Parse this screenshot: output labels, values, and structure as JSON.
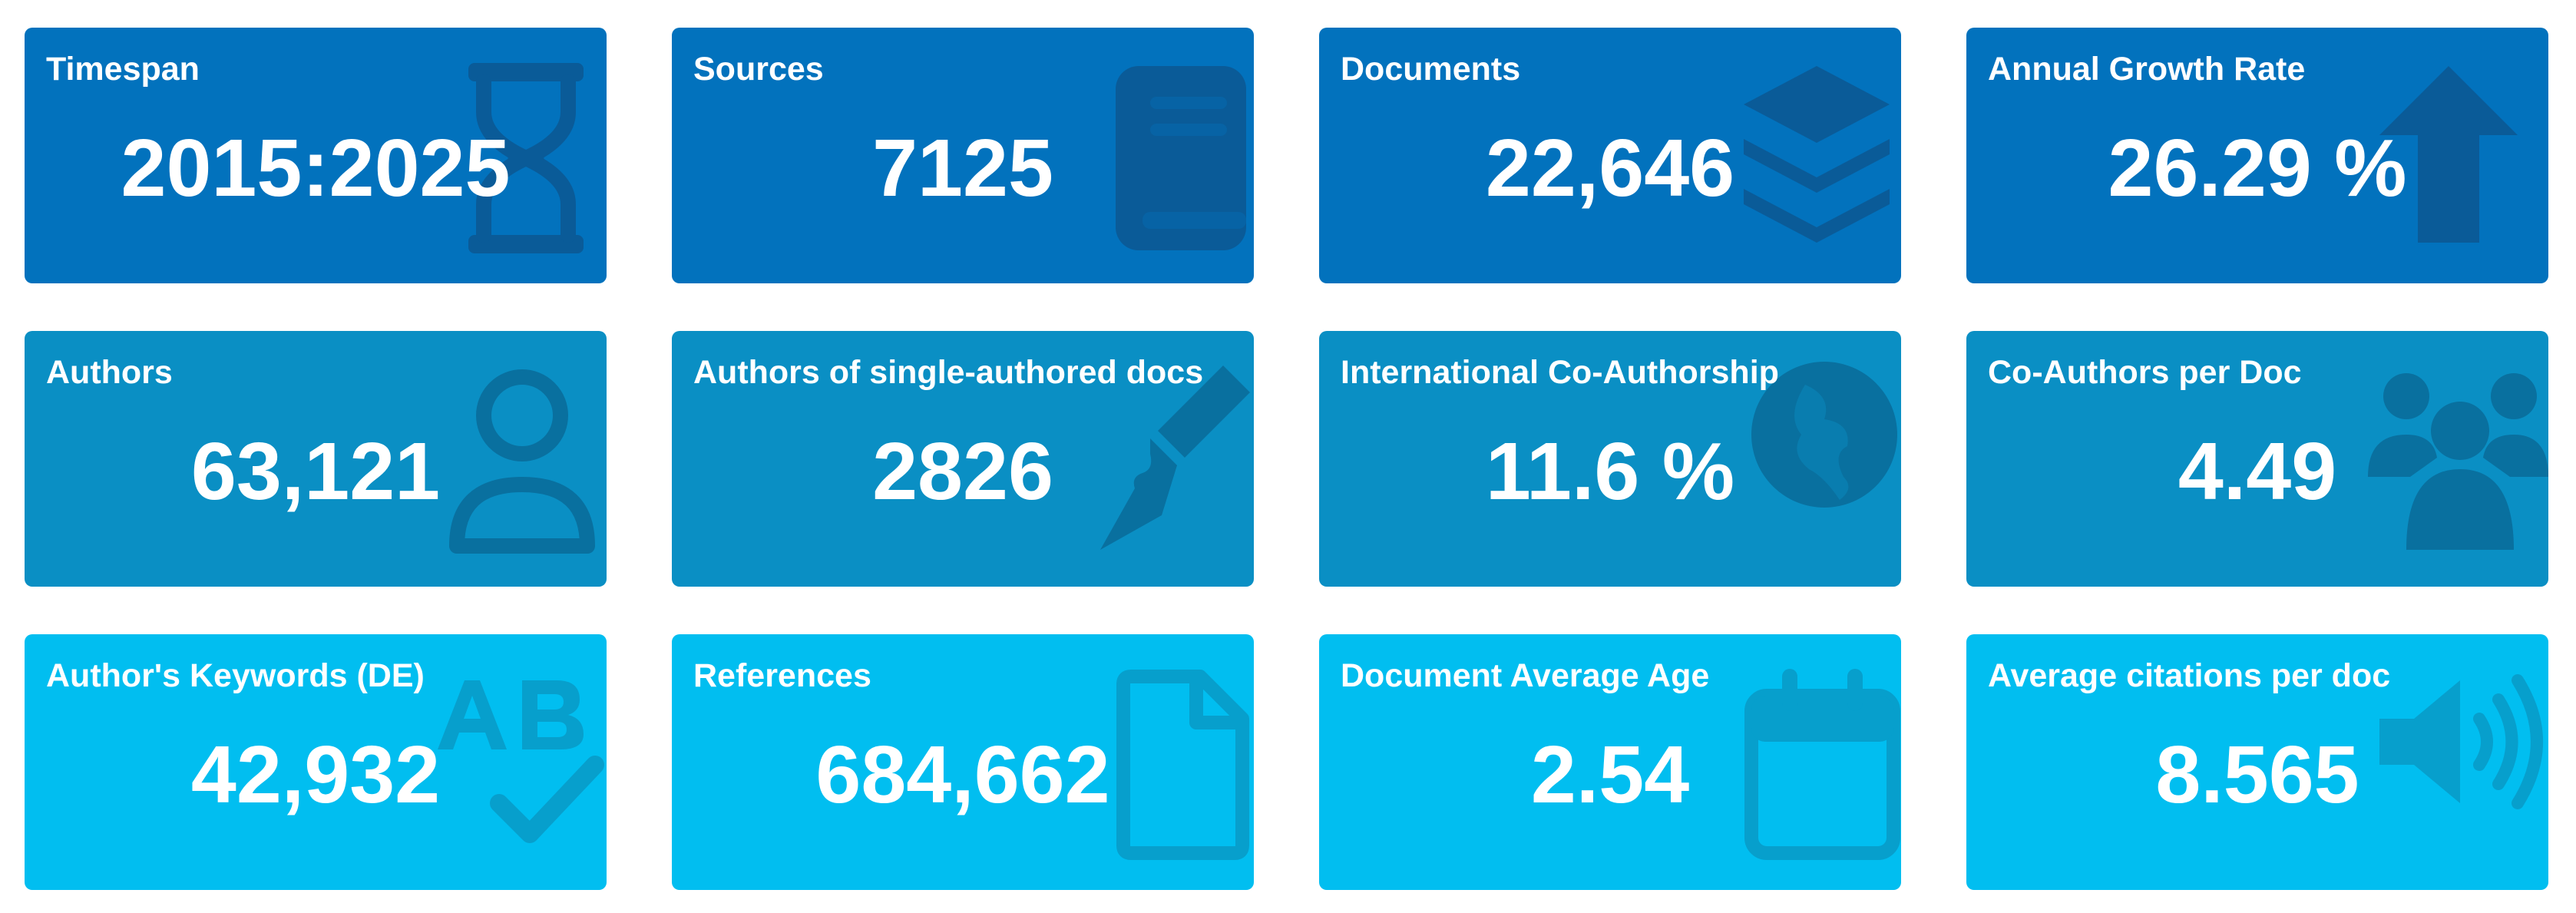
{
  "cards": [
    {
      "label": "Timespan",
      "value": "2015:2025",
      "icon": "hourglass-icon"
    },
    {
      "label": "Sources",
      "value": "7125",
      "icon": "book-icon"
    },
    {
      "label": "Documents",
      "value": "22,646",
      "icon": "layers-icon"
    },
    {
      "label": "Annual Growth Rate",
      "value": "26.29 %",
      "icon": "arrow-up-icon"
    },
    {
      "label": "Authors",
      "value": "63,121",
      "icon": "user-icon"
    },
    {
      "label": "Authors of single-authored docs",
      "value": "2826",
      "icon": "pen-nib-icon"
    },
    {
      "label": "International Co-Authorship",
      "value": "11.6 %",
      "icon": "globe-icon"
    },
    {
      "label": "Co-Authors per Doc",
      "value": "4.49",
      "icon": "users-icon"
    },
    {
      "label": "Author's Keywords (DE)",
      "value": "42,932",
      "icon": "spell-check-icon"
    },
    {
      "label": "References",
      "value": "684,662",
      "icon": "file-icon"
    },
    {
      "label": "Document Average Age",
      "value": "2.54",
      "icon": "calendar-icon"
    },
    {
      "label": "Average citations per doc",
      "value": "8.565",
      "icon": "volume-icon"
    }
  ],
  "colors": {
    "row1_bg": "#0272bd",
    "row2_bg": "#0a8fc4",
    "row3_bg": "#01bef0",
    "text": "#ffffff"
  }
}
